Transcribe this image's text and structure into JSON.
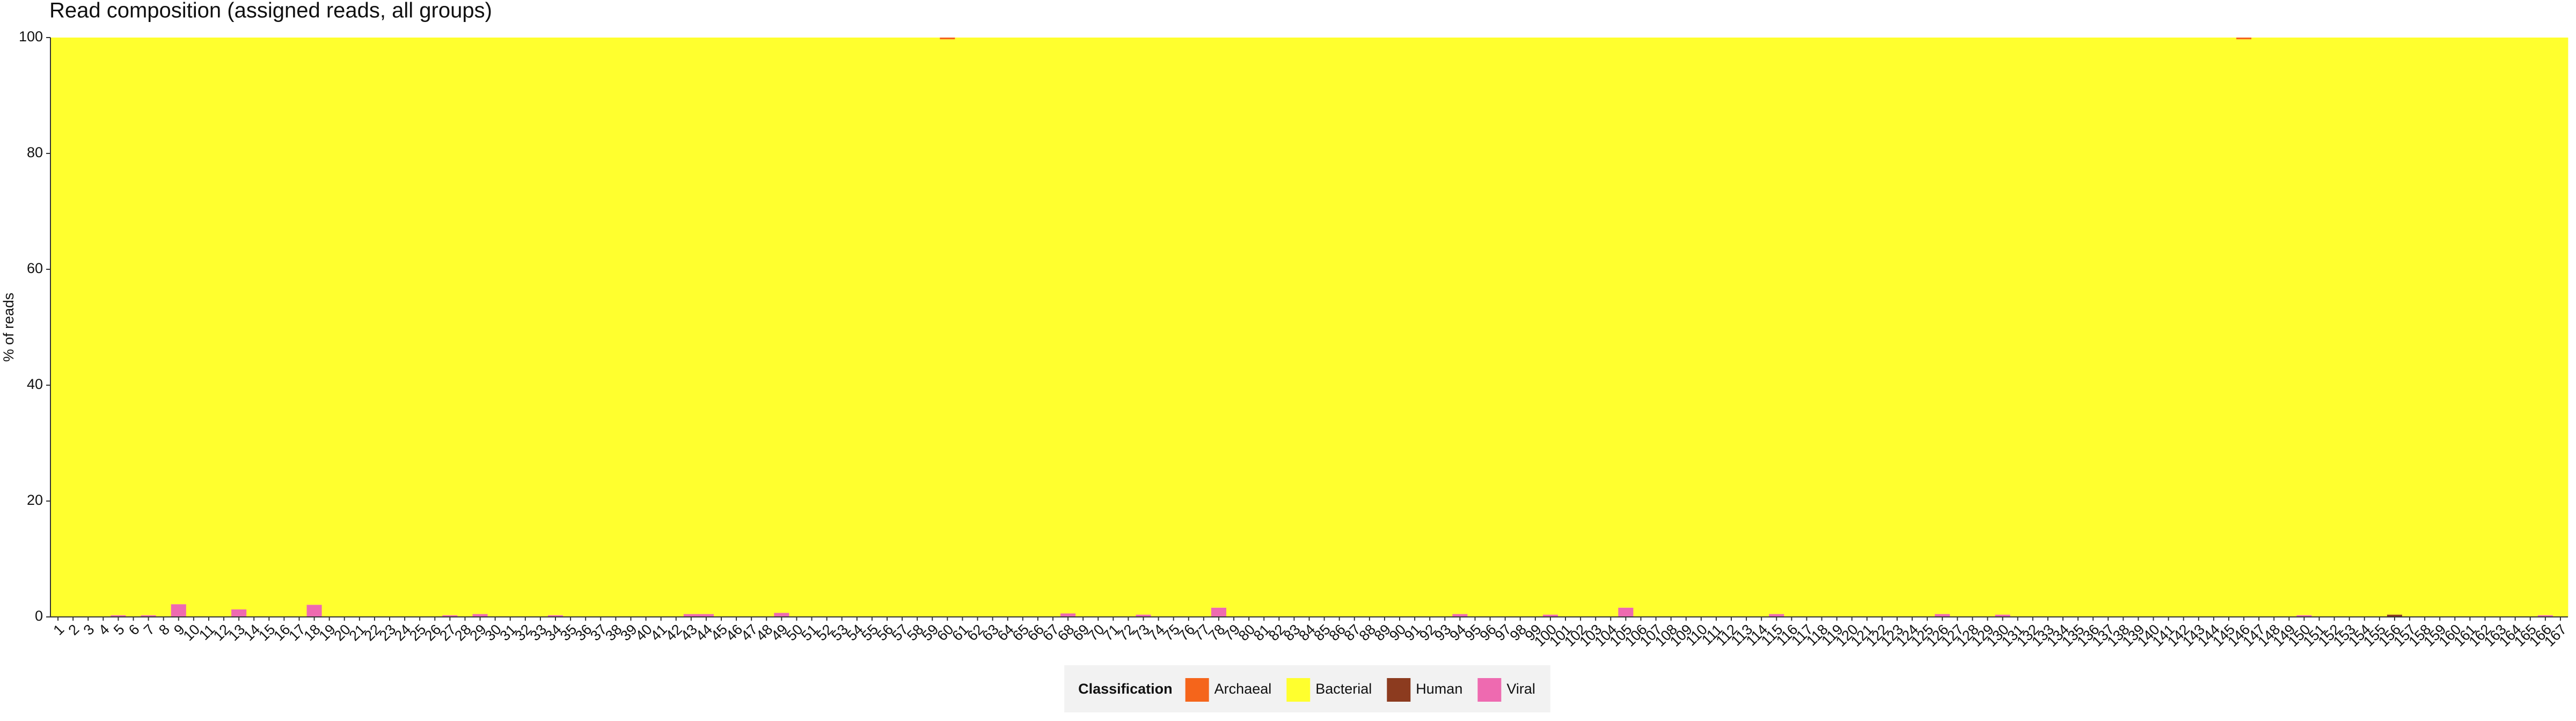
{
  "chart_data": {
    "type": "stacked_bar",
    "title": "Read composition (assigned reads, all groups)",
    "y_label": "% of reads",
    "legend_title": "Classification",
    "ylim": [
      0,
      100
    ],
    "yticks": [
      0,
      20,
      40,
      60,
      80,
      100
    ],
    "grid": false,
    "legend_position": "bottom",
    "categories": [
      "1",
      "2",
      "3",
      "4",
      "5",
      "6",
      "7",
      "8",
      "9",
      "10",
      "11",
      "12",
      "13",
      "14",
      "15",
      "16",
      "17",
      "18",
      "19",
      "20",
      "21",
      "22",
      "23",
      "24",
      "25",
      "26",
      "27",
      "28",
      "29",
      "30",
      "31",
      "32",
      "33",
      "34",
      "35",
      "36",
      "37",
      "38",
      "39",
      "40",
      "41",
      "42",
      "43",
      "44",
      "45",
      "46",
      "47",
      "48",
      "49",
      "50",
      "51",
      "52",
      "53",
      "54",
      "55",
      "56",
      "57",
      "58",
      "59",
      "60",
      "61",
      "62",
      "63",
      "64",
      "65",
      "66",
      "67",
      "68",
      "69",
      "70",
      "71",
      "72",
      "73",
      "74",
      "75",
      "76",
      "77",
      "78",
      "79",
      "80",
      "81",
      "82",
      "83",
      "84",
      "85",
      "86",
      "87",
      "88",
      "89",
      "90",
      "91",
      "92",
      "93",
      "94",
      "95",
      "96",
      "97",
      "98",
      "99",
      "100",
      "101",
      "102",
      "103",
      "104",
      "105",
      "106",
      "107",
      "108",
      "109",
      "110",
      "111",
      "112",
      "113",
      "114",
      "115",
      "116",
      "117",
      "118",
      "119",
      "120",
      "121",
      "122",
      "123",
      "124",
      "125",
      "126",
      "127",
      "128",
      "129",
      "130",
      "131",
      "132",
      "133",
      "134",
      "135",
      "136",
      "137",
      "138",
      "139",
      "140",
      "141",
      "142",
      "143",
      "144",
      "145",
      "146",
      "147",
      "148",
      "149",
      "150",
      "151",
      "152",
      "153",
      "154",
      "155",
      "156",
      "157",
      "158",
      "159",
      "160",
      "161",
      "162",
      "163",
      "164",
      "165",
      "166",
      "167"
    ],
    "series": [
      {
        "name": "Archaeal",
        "color": "#f5651b",
        "values": [
          0,
          0,
          0,
          0,
          0,
          0,
          0,
          0,
          0,
          0,
          0,
          0,
          0,
          0,
          0,
          0,
          0,
          0,
          0,
          0,
          0,
          0,
          0,
          0,
          0,
          0,
          0,
          0,
          0,
          0,
          0,
          0,
          0,
          0,
          0,
          0,
          0,
          0,
          0,
          0,
          0,
          0,
          0,
          0,
          0,
          0,
          0,
          0,
          0,
          0,
          0,
          0,
          0,
          0,
          0,
          0,
          0,
          0,
          0,
          0.3,
          0,
          0,
          0,
          0,
          0,
          0,
          0,
          0,
          0,
          0,
          0,
          0,
          0,
          0,
          0,
          0,
          0,
          0,
          0,
          0,
          0,
          0,
          0,
          0,
          0,
          0,
          0,
          0,
          0,
          0,
          0,
          0,
          0,
          0,
          0,
          0,
          0,
          0,
          0,
          0,
          0,
          0,
          0,
          0,
          0,
          0,
          0,
          0,
          0,
          0,
          0,
          0,
          0,
          0,
          0,
          0,
          0,
          0,
          0,
          0,
          0,
          0,
          0,
          0,
          0,
          0,
          0,
          0,
          0,
          0,
          0,
          0,
          0,
          0,
          0,
          0,
          0,
          0,
          0,
          0,
          0,
          0,
          0,
          0,
          0,
          0.3,
          0,
          0,
          0,
          0,
          0,
          0,
          0,
          0,
          0,
          0,
          0,
          0,
          0,
          0,
          0,
          0,
          0,
          0,
          0,
          0,
          0
        ]
      },
      {
        "name": "Bacterial",
        "color": "#ffff2e",
        "values": [
          100,
          100,
          100,
          100,
          99.7,
          100,
          99.7,
          100,
          97.8,
          100,
          100,
          100,
          98.7,
          100,
          100,
          100,
          100,
          97.9,
          100,
          100,
          100,
          100,
          100,
          100,
          100,
          100,
          99.7,
          100,
          99.5,
          100,
          100,
          100,
          100,
          99.7,
          100,
          100,
          100,
          100,
          100,
          100,
          100,
          100,
          99.5,
          99.5,
          100,
          100,
          100,
          100,
          99.3,
          100,
          100,
          100,
          100,
          100,
          100,
          100,
          100,
          100,
          100,
          99.7,
          100,
          100,
          100,
          100,
          100,
          100,
          100,
          99.4,
          100,
          100,
          100,
          100,
          99.6,
          100,
          100,
          100,
          100,
          98.4,
          100,
          100,
          100,
          100,
          100,
          100,
          100,
          100,
          100,
          100,
          100,
          100,
          100,
          100,
          100,
          99.5,
          100,
          100,
          100,
          100,
          100,
          99.6,
          100,
          100,
          100,
          100,
          98.4,
          100,
          100,
          100,
          100,
          100,
          100,
          100,
          100,
          100,
          99.5,
          100,
          100,
          100,
          100,
          100,
          100,
          100,
          100,
          100,
          100,
          99.5,
          100,
          100,
          100,
          99.6,
          100,
          100,
          100,
          100,
          100,
          100,
          100,
          100,
          100,
          100,
          100,
          100,
          100,
          100,
          100,
          99.7,
          100,
          100,
          100,
          99.7,
          100,
          100,
          100,
          100,
          100,
          99.6,
          100,
          100,
          100,
          100,
          100,
          100,
          100,
          100,
          100,
          99.7,
          100
        ]
      },
      {
        "name": "Human",
        "color": "#8c3b1f",
        "values": [
          0,
          0,
          0,
          0,
          0,
          0,
          0,
          0,
          0,
          0,
          0,
          0,
          0,
          0,
          0,
          0,
          0,
          0,
          0,
          0,
          0,
          0,
          0,
          0,
          0,
          0,
          0,
          0,
          0,
          0,
          0,
          0,
          0,
          0,
          0,
          0,
          0,
          0,
          0,
          0,
          0,
          0,
          0,
          0,
          0,
          0,
          0,
          0,
          0,
          0,
          0,
          0,
          0,
          0,
          0,
          0,
          0,
          0,
          0,
          0,
          0,
          0,
          0,
          0,
          0,
          0,
          0,
          0,
          0,
          0,
          0,
          0,
          0,
          0,
          0,
          0,
          0,
          0,
          0,
          0,
          0,
          0,
          0,
          0,
          0,
          0,
          0,
          0,
          0,
          0,
          0,
          0,
          0,
          0,
          0,
          0,
          0,
          0,
          0,
          0,
          0,
          0,
          0,
          0,
          0,
          0,
          0,
          0,
          0,
          0,
          0,
          0,
          0,
          0,
          0,
          0,
          0,
          0,
          0,
          0,
          0,
          0,
          0,
          0,
          0,
          0,
          0,
          0,
          0,
          0,
          0,
          0,
          0,
          0,
          0,
          0,
          0,
          0,
          0,
          0,
          0,
          0,
          0,
          0,
          0,
          0,
          0,
          0,
          0,
          0,
          0,
          0,
          0,
          0,
          0,
          0.4,
          0,
          0,
          0,
          0,
          0,
          0,
          0,
          0,
          0,
          0,
          0
        ]
      },
      {
        "name": "Viral",
        "color": "#ee6ab0",
        "values": [
          0,
          0,
          0,
          0,
          0.3,
          0,
          0.3,
          0,
          2.2,
          0,
          0,
          0,
          1.3,
          0,
          0,
          0,
          0,
          2.1,
          0,
          0,
          0,
          0,
          0,
          0,
          0,
          0,
          0.3,
          0,
          0.5,
          0,
          0,
          0,
          0,
          0.3,
          0,
          0,
          0,
          0,
          0,
          0,
          0,
          0,
          0.5,
          0.5,
          0,
          0,
          0,
          0,
          0.7,
          0,
          0,
          0,
          0,
          0,
          0,
          0,
          0,
          0,
          0,
          0,
          0,
          0,
          0,
          0,
          0,
          0,
          0,
          0.6,
          0,
          0,
          0,
          0,
          0.4,
          0,
          0,
          0,
          0,
          1.6,
          0,
          0,
          0,
          0,
          0,
          0,
          0,
          0,
          0,
          0,
          0,
          0,
          0,
          0,
          0,
          0.5,
          0,
          0,
          0,
          0,
          0,
          0.4,
          0,
          0,
          0,
          0,
          1.6,
          0,
          0,
          0,
          0,
          0,
          0,
          0,
          0,
          0,
          0.5,
          0,
          0,
          0,
          0,
          0,
          0,
          0,
          0,
          0,
          0,
          0.5,
          0,
          0,
          0,
          0.4,
          0,
          0,
          0,
          0,
          0,
          0,
          0,
          0,
          0,
          0,
          0,
          0,
          0,
          0,
          0,
          0,
          0,
          0,
          0,
          0.3,
          0,
          0,
          0,
          0,
          0,
          0,
          0,
          0,
          0,
          0,
          0,
          0,
          0,
          0,
          0,
          0.3,
          0
        ]
      }
    ]
  }
}
